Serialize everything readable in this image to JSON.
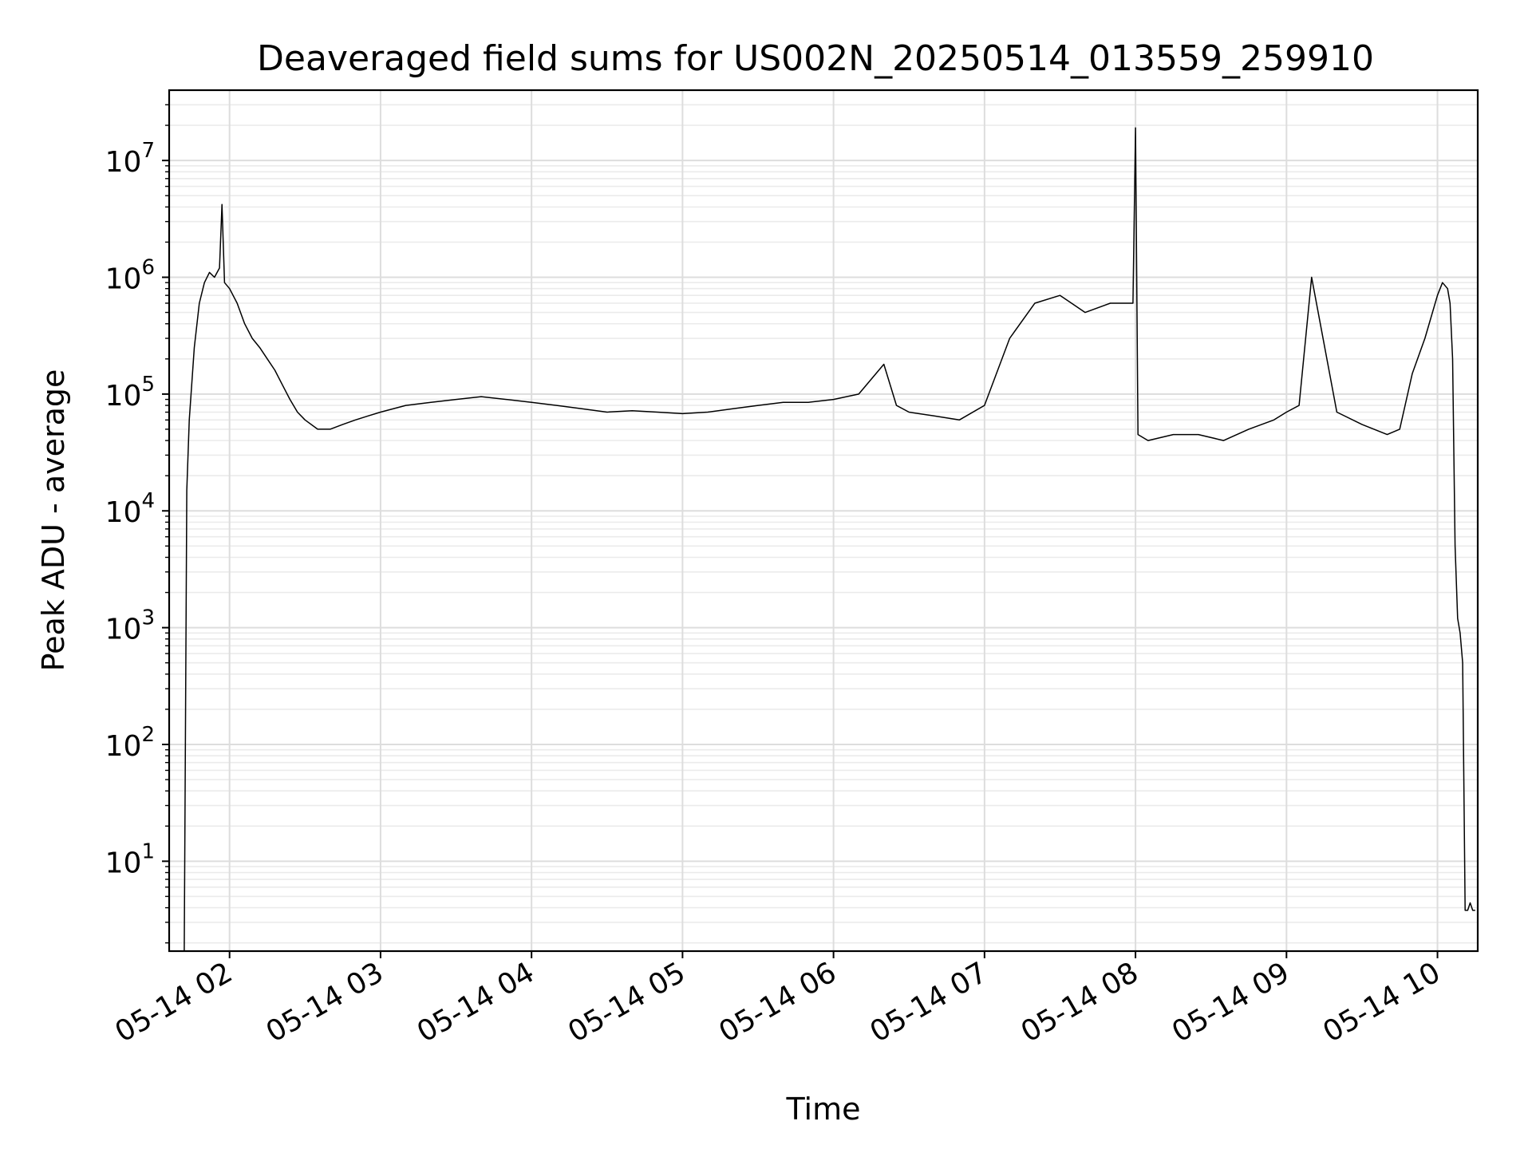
{
  "chart_data": {
    "type": "line",
    "title": "Deaveraged field sums for US002N_20250514_013559_259910",
    "xlabel": "Time",
    "ylabel": "Peak ADU - average",
    "x_scale": "time",
    "y_scale": "log",
    "xlim": [
      "2025-05-14 01:36",
      "2025-05-14 10:16"
    ],
    "ylim": [
      1.7,
      40000000
    ],
    "grid": {
      "major": true,
      "minor": true
    },
    "legend": "none",
    "x_ticks": [
      {
        "value": "2025-05-14 02:00",
        "label": "05-14 02"
      },
      {
        "value": "2025-05-14 03:00",
        "label": "05-14 03"
      },
      {
        "value": "2025-05-14 04:00",
        "label": "05-14 04"
      },
      {
        "value": "2025-05-14 05:00",
        "label": "05-14 05"
      },
      {
        "value": "2025-05-14 06:00",
        "label": "05-14 06"
      },
      {
        "value": "2025-05-14 07:00",
        "label": "05-14 07"
      },
      {
        "value": "2025-05-14 08:00",
        "label": "05-14 08"
      },
      {
        "value": "2025-05-14 09:00",
        "label": "05-14 09"
      },
      {
        "value": "2025-05-14 10:00",
        "label": "05-14 10"
      }
    ],
    "y_ticks": [
      {
        "value": 10,
        "base": "10",
        "exp": "1"
      },
      {
        "value": 100,
        "base": "10",
        "exp": "2"
      },
      {
        "value": 1000,
        "base": "10",
        "exp": "3"
      },
      {
        "value": 10000,
        "base": "10",
        "exp": "4"
      },
      {
        "value": 100000,
        "base": "10",
        "exp": "5"
      },
      {
        "value": 1000000,
        "base": "10",
        "exp": "6"
      },
      {
        "value": 10000000,
        "base": "10",
        "exp": "7"
      }
    ],
    "series": [
      {
        "color": "#000000",
        "x": [
          "2025-05-14 01:42",
          "2025-05-14 01:43",
          "2025-05-14 01:44",
          "2025-05-14 01:46",
          "2025-05-14 01:48",
          "2025-05-14 01:50",
          "2025-05-14 01:52",
          "2025-05-14 01:54",
          "2025-05-14 01:56",
          "2025-05-14 01:57",
          "2025-05-14 01:58",
          "2025-05-14 02:00",
          "2025-05-14 02:03",
          "2025-05-14 02:06",
          "2025-05-14 02:09",
          "2025-05-14 02:12",
          "2025-05-14 02:15",
          "2025-05-14 02:18",
          "2025-05-14 02:21",
          "2025-05-14 02:24",
          "2025-05-14 02:27",
          "2025-05-14 02:30",
          "2025-05-14 02:35",
          "2025-05-14 02:40",
          "2025-05-14 02:45",
          "2025-05-14 02:50",
          "2025-05-14 02:55",
          "2025-05-14 03:00",
          "2025-05-14 03:10",
          "2025-05-14 03:20",
          "2025-05-14 03:30",
          "2025-05-14 03:40",
          "2025-05-14 03:50",
          "2025-05-14 04:00",
          "2025-05-14 04:10",
          "2025-05-14 04:20",
          "2025-05-14 04:30",
          "2025-05-14 04:40",
          "2025-05-14 04:50",
          "2025-05-14 05:00",
          "2025-05-14 05:10",
          "2025-05-14 05:20",
          "2025-05-14 05:30",
          "2025-05-14 05:40",
          "2025-05-14 05:50",
          "2025-05-14 06:00",
          "2025-05-14 06:10",
          "2025-05-14 06:20",
          "2025-05-14 06:25",
          "2025-05-14 06:30",
          "2025-05-14 06:40",
          "2025-05-14 06:50",
          "2025-05-14 07:00",
          "2025-05-14 07:10",
          "2025-05-14 07:20",
          "2025-05-14 07:30",
          "2025-05-14 07:40",
          "2025-05-14 07:50",
          "2025-05-14 07:59",
          "2025-05-14 08:00",
          "2025-05-14 08:01",
          "2025-05-14 08:05",
          "2025-05-14 08:15",
          "2025-05-14 08:25",
          "2025-05-14 08:35",
          "2025-05-14 08:45",
          "2025-05-14 08:55",
          "2025-05-14 09:00",
          "2025-05-14 09:05",
          "2025-05-14 09:10",
          "2025-05-14 09:20",
          "2025-05-14 09:30",
          "2025-05-14 09:40",
          "2025-05-14 09:45",
          "2025-05-14 09:50",
          "2025-05-14 09:55",
          "2025-05-14 10:00",
          "2025-05-14 10:02",
          "2025-05-14 10:04",
          "2025-05-14 10:05",
          "2025-05-14 10:06",
          "2025-05-14 10:07",
          "2025-05-14 10:08",
          "2025-05-14 10:09",
          "2025-05-14 10:10",
          "2025-05-14 10:11",
          "2025-05-14 10:12",
          "2025-05-14 10:13",
          "2025-05-14 10:14",
          "2025-05-14 10:15"
        ],
        "y": [
          1.7,
          15000,
          60000,
          250000,
          600000,
          900000,
          1100000,
          1000000,
          1200000,
          4200000,
          900000,
          800000,
          600000,
          400000,
          300000,
          250000,
          200000,
          160000,
          120000,
          90000,
          70000,
          60000,
          50000,
          50000,
          55000,
          60000,
          65000,
          70000,
          80000,
          85000,
          90000,
          95000,
          90000,
          85000,
          80000,
          75000,
          70000,
          72000,
          70000,
          68000,
          70000,
          75000,
          80000,
          85000,
          85000,
          90000,
          100000,
          180000,
          80000,
          70000,
          65000,
          60000,
          80000,
          300000,
          600000,
          700000,
          500000,
          600000,
          600000,
          19000000,
          45000,
          40000,
          45000,
          45000,
          40000,
          50000,
          60000,
          70000,
          80000,
          1000000,
          70000,
          55000,
          45000,
          50000,
          150000,
          300000,
          700000,
          900000,
          800000,
          600000,
          200000,
          5000,
          1200,
          900,
          500,
          3.8,
          3.8,
          4.4,
          3.8,
          3.8
        ]
      }
    ]
  }
}
